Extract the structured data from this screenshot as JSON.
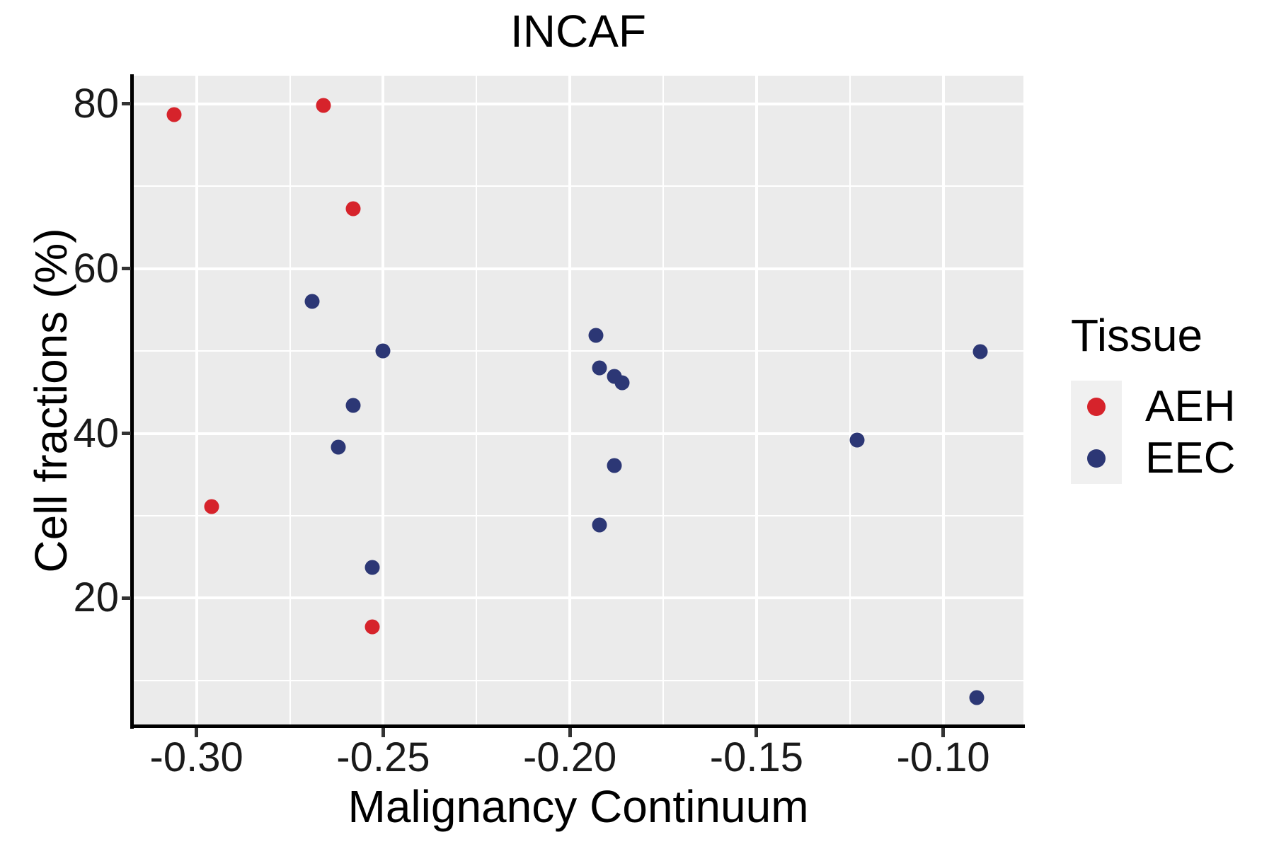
{
  "title": "INCAF",
  "axes": {
    "x": {
      "label": "Malignancy Continuum",
      "tick_labels": [
        "-0.30",
        "-0.25",
        "-0.20",
        "-0.15",
        "-0.10"
      ],
      "tick_values": [
        -0.3,
        -0.25,
        -0.2,
        -0.15,
        -0.1
      ],
      "minor_tick_values": [
        -0.275,
        -0.225,
        -0.175,
        -0.125
      ],
      "domain": [
        -0.317,
        -0.0785
      ]
    },
    "y": {
      "label": "Cell fractions (%)",
      "tick_labels": [
        "20",
        "40",
        "60",
        "80"
      ],
      "tick_values": [
        20,
        40,
        60,
        80
      ],
      "minor_tick_values": [
        10,
        30,
        50,
        70
      ],
      "domain": [
        4.5,
        83.4
      ]
    }
  },
  "legend": {
    "title": "Tissue",
    "items": [
      {
        "label": "AEH",
        "color": "#d6232b"
      },
      {
        "label": "EEC",
        "color": "#2c3775"
      }
    ]
  },
  "style": {
    "panel_bg": "#ebebeb",
    "grid_color": "#ffffff",
    "legend_key_bg": "#f0f0f0",
    "aeh_color": "#d6232b",
    "eec_color": "#2c3775"
  },
  "chart_data": {
    "type": "scatter",
    "title": "INCAF",
    "xlabel": "Malignancy Continuum",
    "ylabel": "Cell fractions (%)",
    "xlim": [
      -0.317,
      -0.0785
    ],
    "ylim": [
      4.5,
      83.4
    ],
    "grid": true,
    "legend_position": "right",
    "series": [
      {
        "name": "AEH",
        "color": "#d6232b",
        "points": [
          [
            -0.306,
            78.7
          ],
          [
            -0.266,
            79.8
          ],
          [
            -0.258,
            67.3
          ],
          [
            -0.296,
            31.1
          ],
          [
            -0.253,
            16.5
          ]
        ]
      },
      {
        "name": "EEC",
        "color": "#2c3775",
        "points": [
          [
            -0.269,
            56.0
          ],
          [
            -0.25,
            50.0
          ],
          [
            -0.258,
            43.4
          ],
          [
            -0.262,
            38.3
          ],
          [
            -0.253,
            23.7
          ],
          [
            -0.193,
            51.9
          ],
          [
            -0.192,
            47.9
          ],
          [
            -0.188,
            46.9
          ],
          [
            -0.186,
            46.1
          ],
          [
            -0.188,
            36.1
          ],
          [
            -0.192,
            28.9
          ],
          [
            -0.123,
            39.2
          ],
          [
            -0.09,
            49.9
          ],
          [
            -0.091,
            7.9
          ]
        ]
      }
    ]
  }
}
